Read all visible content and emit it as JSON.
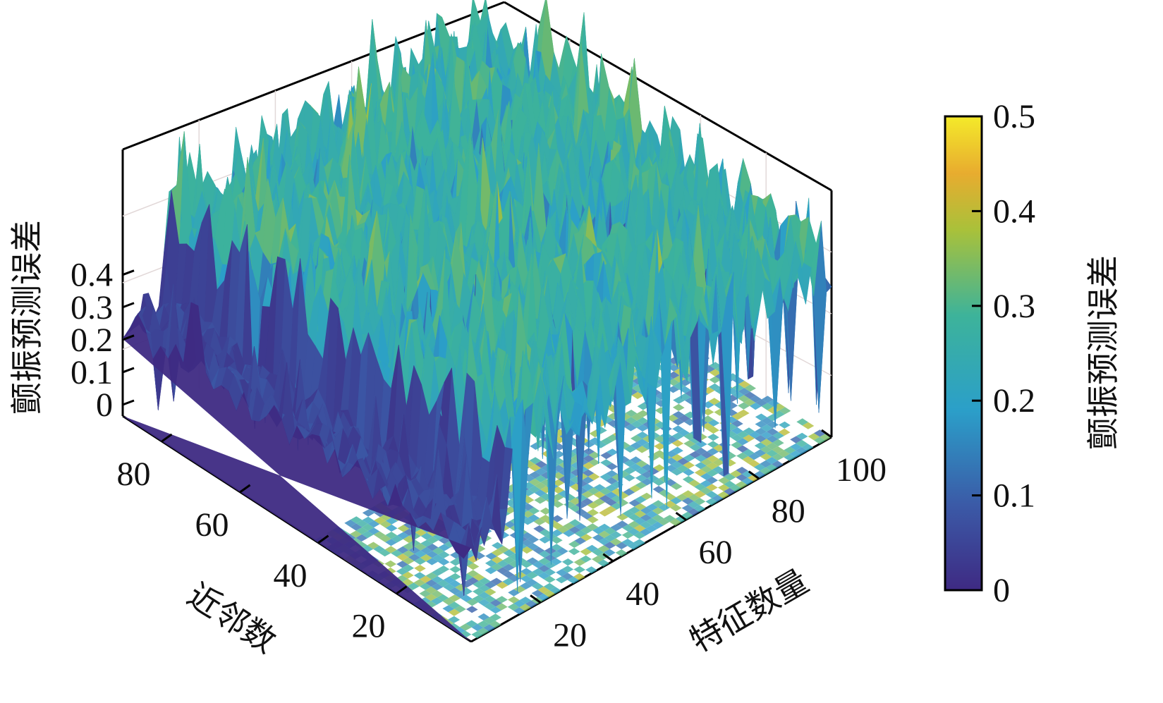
{
  "chart_data": {
    "type": "surface3d",
    "title": "",
    "xlabel": "近邻数",
    "ylabel": "特征数量",
    "zlabel": "颤振预测误差",
    "x_ticks": [
      80,
      60,
      40,
      20
    ],
    "y_ticks": [
      20,
      40,
      60,
      80,
      100
    ],
    "z_ticks": [
      0,
      0.1,
      0.2,
      0.3,
      0.4
    ],
    "x_range": [
      1,
      90
    ],
    "y_range": [
      1,
      100
    ],
    "z_range": [
      -0.15,
      0.45
    ],
    "surface_summary": {
      "description_values": "noisy error surface over neighbors x features",
      "low_region_value": 0.02,
      "typical_range": [
        0.15,
        0.35
      ],
      "peak_value": 0.45,
      "floor_projection_range": [
        0.1,
        0.4
      ]
    },
    "colorbar": {
      "label": "颤振预测误差",
      "range": [
        0,
        0.5
      ],
      "ticks": [
        0,
        0.1,
        0.2,
        0.3,
        0.4,
        0.5
      ],
      "tick_labels": [
        "0",
        "0.1",
        "0.2",
        "0.3",
        "0.4",
        "0.5"
      ],
      "colormap": "viridis",
      "stops": [
        "#440154",
        "#3b528b",
        "#21918c",
        "#5ec962",
        "#fde725"
      ]
    }
  }
}
